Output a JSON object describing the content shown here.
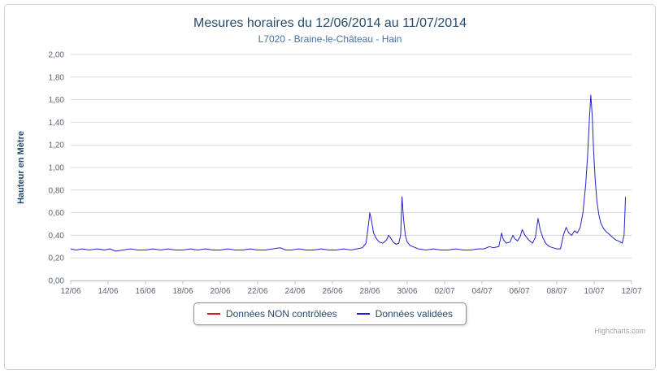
{
  "colors": {
    "title": "#274b6d",
    "subtitle": "#4572A7",
    "axis_label": "#5a6574",
    "grid": "#D8D8D8",
    "axis_line": "#C0C0C0",
    "legend_border": "#909090",
    "legend_text": "#274b6d",
    "credits": "#A0A0A0",
    "series_red": "#CC2222",
    "series_blue": "#2222CC"
  },
  "credits": {
    "label": "Highcharts.com"
  },
  "chart_data": {
    "type": "line",
    "title": "Mesures horaires du 12/06/2014 au 11/07/2014",
    "subtitle": "L7020 - Braine-le-Château - Hain",
    "xlabel": "",
    "ylabel": "Hauteur en Mètre",
    "ylim": [
      0,
      2
    ],
    "xlim": [
      0,
      30
    ],
    "x_unit": "days since 12/06/2014",
    "grid": true,
    "legend_position": "bottom",
    "yticks": [
      {
        "value": 0.0,
        "label": "0,00"
      },
      {
        "value": 0.2,
        "label": "0,20"
      },
      {
        "value": 0.4,
        "label": "0,40"
      },
      {
        "value": 0.6,
        "label": "0,60"
      },
      {
        "value": 0.8,
        "label": "0,80"
      },
      {
        "value": 1.0,
        "label": "1,00"
      },
      {
        "value": 1.2,
        "label": "1,20"
      },
      {
        "value": 1.4,
        "label": "1,40"
      },
      {
        "value": 1.6,
        "label": "1,60"
      },
      {
        "value": 1.8,
        "label": "1,80"
      },
      {
        "value": 2.0,
        "label": "2,00"
      }
    ],
    "xticks": [
      {
        "value": 0,
        "label": "12/06"
      },
      {
        "value": 2,
        "label": "14/06"
      },
      {
        "value": 4,
        "label": "16/06"
      },
      {
        "value": 6,
        "label": "18/06"
      },
      {
        "value": 8,
        "label": "20/06"
      },
      {
        "value": 10,
        "label": "22/06"
      },
      {
        "value": 12,
        "label": "24/06"
      },
      {
        "value": 14,
        "label": "26/06"
      },
      {
        "value": 16,
        "label": "28/06"
      },
      {
        "value": 18,
        "label": "30/06"
      },
      {
        "value": 20,
        "label": "02/07"
      },
      {
        "value": 22,
        "label": "04/07"
      },
      {
        "value": 24,
        "label": "06/07"
      },
      {
        "value": 26,
        "label": "08/07"
      },
      {
        "value": 28,
        "label": "10/07"
      },
      {
        "value": 30,
        "label": "12/07"
      }
    ],
    "series": [
      {
        "name": "Données NON contrôlées",
        "color": "#CC2222",
        "data": []
      },
      {
        "name": "Données validées",
        "color": "#2222CC",
        "data": [
          [
            0,
            0.28
          ],
          [
            0.3,
            0.27
          ],
          [
            0.6,
            0.28
          ],
          [
            1,
            0.27
          ],
          [
            1.4,
            0.28
          ],
          [
            1.8,
            0.27
          ],
          [
            2.1,
            0.28
          ],
          [
            2.4,
            0.26
          ],
          [
            2.8,
            0.27
          ],
          [
            3.2,
            0.28
          ],
          [
            3.6,
            0.27
          ],
          [
            4,
            0.27
          ],
          [
            4.4,
            0.28
          ],
          [
            4.8,
            0.27
          ],
          [
            5.2,
            0.28
          ],
          [
            5.6,
            0.27
          ],
          [
            6,
            0.27
          ],
          [
            6.4,
            0.28
          ],
          [
            6.8,
            0.27
          ],
          [
            7.2,
            0.28
          ],
          [
            7.6,
            0.27
          ],
          [
            8,
            0.27
          ],
          [
            8.4,
            0.28
          ],
          [
            8.8,
            0.27
          ],
          [
            9.2,
            0.27
          ],
          [
            9.6,
            0.28
          ],
          [
            10,
            0.27
          ],
          [
            10.4,
            0.27
          ],
          [
            10.8,
            0.28
          ],
          [
            11.2,
            0.29
          ],
          [
            11.5,
            0.27
          ],
          [
            11.8,
            0.27
          ],
          [
            12.2,
            0.28
          ],
          [
            12.6,
            0.27
          ],
          [
            13,
            0.27
          ],
          [
            13.4,
            0.28
          ],
          [
            13.8,
            0.27
          ],
          [
            14.2,
            0.27
          ],
          [
            14.6,
            0.28
          ],
          [
            15,
            0.27
          ],
          [
            15.3,
            0.28
          ],
          [
            15.6,
            0.29
          ],
          [
            15.8,
            0.33
          ],
          [
            15.9,
            0.46
          ],
          [
            16,
            0.6
          ],
          [
            16.1,
            0.52
          ],
          [
            16.2,
            0.42
          ],
          [
            16.35,
            0.37
          ],
          [
            16.5,
            0.34
          ],
          [
            16.7,
            0.33
          ],
          [
            16.9,
            0.36
          ],
          [
            17,
            0.4
          ],
          [
            17.1,
            0.38
          ],
          [
            17.25,
            0.34
          ],
          [
            17.4,
            0.32
          ],
          [
            17.55,
            0.33
          ],
          [
            17.65,
            0.4
          ],
          [
            17.72,
            0.74
          ],
          [
            17.8,
            0.55
          ],
          [
            17.9,
            0.4
          ],
          [
            18,
            0.34
          ],
          [
            18.15,
            0.31
          ],
          [
            18.3,
            0.3
          ],
          [
            18.6,
            0.28
          ],
          [
            19,
            0.27
          ],
          [
            19.4,
            0.28
          ],
          [
            19.8,
            0.27
          ],
          [
            20.2,
            0.27
          ],
          [
            20.6,
            0.28
          ],
          [
            21,
            0.27
          ],
          [
            21.4,
            0.27
          ],
          [
            21.8,
            0.28
          ],
          [
            22.1,
            0.28
          ],
          [
            22.4,
            0.3
          ],
          [
            22.6,
            0.29
          ],
          [
            22.9,
            0.3
          ],
          [
            23.05,
            0.42
          ],
          [
            23.15,
            0.36
          ],
          [
            23.3,
            0.33
          ],
          [
            23.5,
            0.34
          ],
          [
            23.65,
            0.4
          ],
          [
            23.75,
            0.37
          ],
          [
            23.9,
            0.35
          ],
          [
            24.05,
            0.39
          ],
          [
            24.15,
            0.45
          ],
          [
            24.3,
            0.4
          ],
          [
            24.5,
            0.36
          ],
          [
            24.7,
            0.33
          ],
          [
            24.85,
            0.38
          ],
          [
            25,
            0.55
          ],
          [
            25.1,
            0.46
          ],
          [
            25.25,
            0.38
          ],
          [
            25.4,
            0.33
          ],
          [
            25.6,
            0.3
          ],
          [
            25.8,
            0.29
          ],
          [
            26,
            0.28
          ],
          [
            26.2,
            0.28
          ],
          [
            26.35,
            0.4
          ],
          [
            26.5,
            0.47
          ],
          [
            26.65,
            0.42
          ],
          [
            26.8,
            0.4
          ],
          [
            26.95,
            0.44
          ],
          [
            27.1,
            0.42
          ],
          [
            27.25,
            0.47
          ],
          [
            27.4,
            0.6
          ],
          [
            27.55,
            0.85
          ],
          [
            27.65,
            1.1
          ],
          [
            27.75,
            1.45
          ],
          [
            27.82,
            1.64
          ],
          [
            27.9,
            1.45
          ],
          [
            27.97,
            1.15
          ],
          [
            28.05,
            0.9
          ],
          [
            28.15,
            0.7
          ],
          [
            28.25,
            0.58
          ],
          [
            28.35,
            0.51
          ],
          [
            28.5,
            0.46
          ],
          [
            28.65,
            0.43
          ],
          [
            28.8,
            0.41
          ],
          [
            29,
            0.38
          ],
          [
            29.15,
            0.36
          ],
          [
            29.3,
            0.35
          ],
          [
            29.4,
            0.34
          ],
          [
            29.5,
            0.33
          ],
          [
            29.6,
            0.4
          ],
          [
            29.68,
            0.74
          ]
        ]
      }
    ]
  }
}
